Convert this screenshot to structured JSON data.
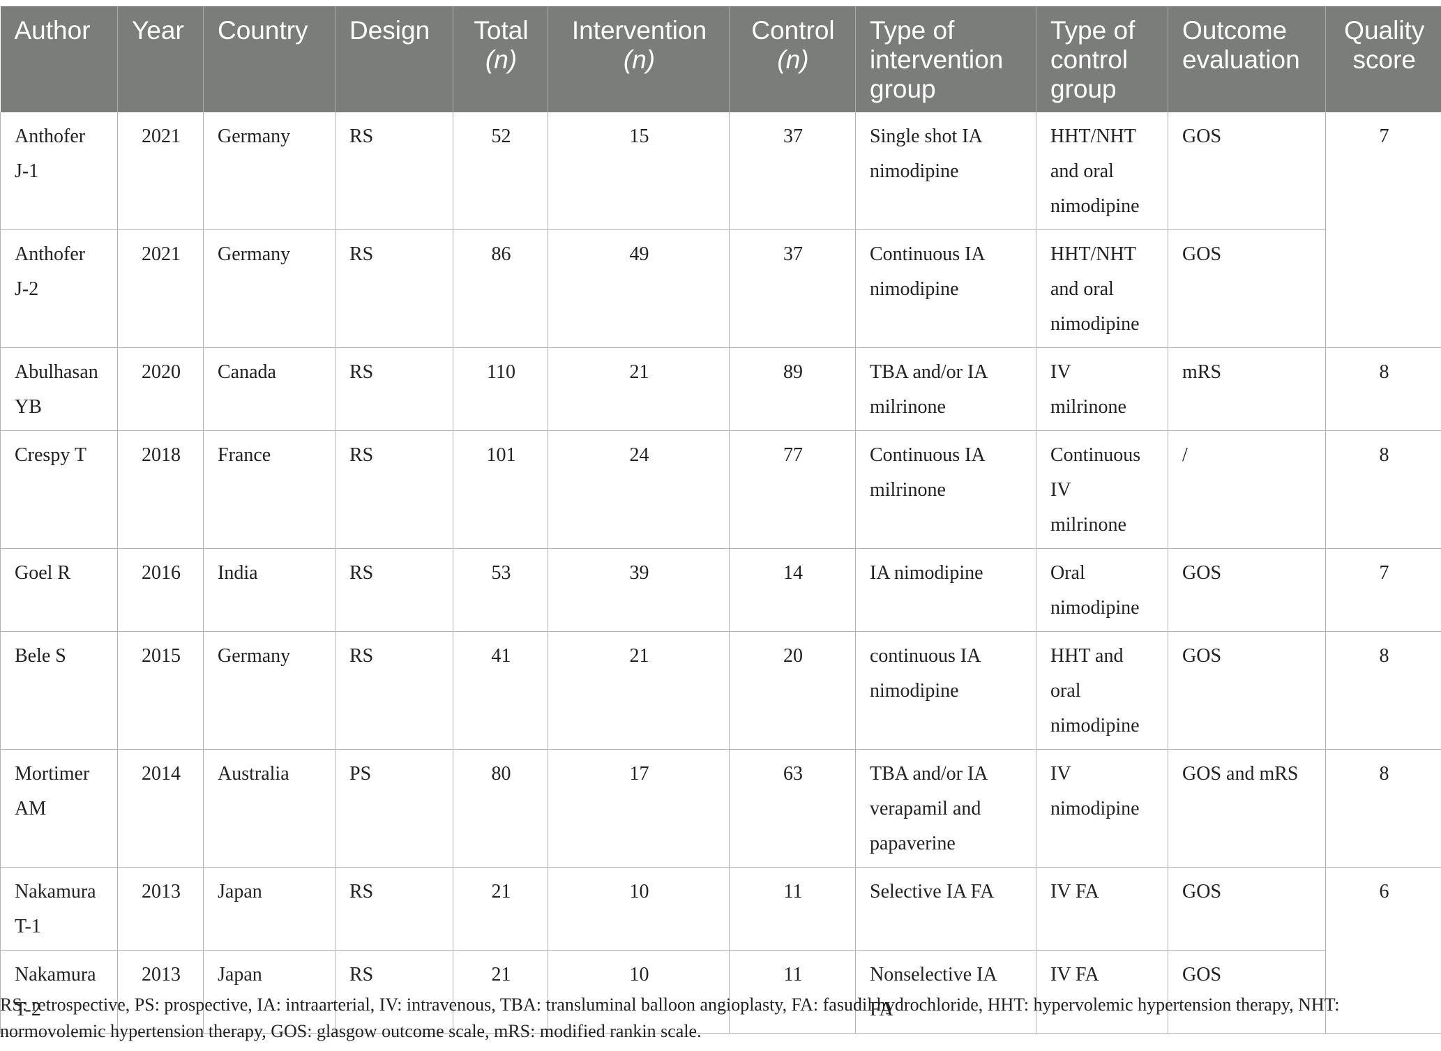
{
  "table": {
    "headers": [
      {
        "line1": "Author",
        "line2": "",
        "line3": ""
      },
      {
        "line1": "Year",
        "line2": "",
        "line3": ""
      },
      {
        "line1": "Country",
        "line2": "",
        "line3": ""
      },
      {
        "line1": "Design",
        "line2": "",
        "line3": ""
      },
      {
        "line1": "Total",
        "italic": "(n)"
      },
      {
        "line1": "Intervention",
        "italic": "(n)"
      },
      {
        "line1": "Control",
        "italic": "(n)"
      },
      {
        "line1": "Type of",
        "line2": "intervention",
        "line3": "group"
      },
      {
        "line1": "Type of",
        "line2": "control",
        "line3": "group"
      },
      {
        "line1": "Outcome",
        "line2": "evaluation",
        "line3": ""
      },
      {
        "line1": "Quality",
        "line2": "score",
        "line3": ""
      }
    ],
    "rows": [
      {
        "author": [
          "Anthofer",
          "J-1"
        ],
        "year": "2021",
        "country": "Germany",
        "design": "RS",
        "total": "52",
        "intervention": "15",
        "control": "37",
        "intervention_type": [
          "Single shot IA",
          "nimodipine"
        ],
        "control_type": [
          "HHT/NHT",
          "and oral",
          "nimodipine"
        ],
        "outcome": "GOS",
        "quality": "7"
      },
      {
        "author": [
          "Anthofer",
          "J-2"
        ],
        "year": "2021",
        "country": "Germany",
        "design": "RS",
        "total": "86",
        "intervention": "49",
        "control": "37",
        "intervention_type": [
          "Continuous IA",
          "nimodipine"
        ],
        "control_type": [
          "HHT/NHT",
          "and oral",
          "nimodipine"
        ],
        "outcome": "GOS",
        "quality": ""
      },
      {
        "author": [
          "Abulhasan",
          "YB"
        ],
        "year": "2020",
        "country": "Canada",
        "design": "RS",
        "total": "110",
        "intervention": "21",
        "control": "89",
        "intervention_type": [
          "TBA and/or IA",
          "milrinone"
        ],
        "control_type": [
          "IV",
          "milrinone"
        ],
        "outcome": "mRS",
        "quality": "8"
      },
      {
        "author": [
          "Crespy T"
        ],
        "year": "2018",
        "country": "France",
        "design": "RS",
        "total": "101",
        "intervention": "24",
        "control": "77",
        "intervention_type": [
          "Continuous IA",
          "milrinone"
        ],
        "control_type": [
          "Continuous",
          "IV",
          "milrinone"
        ],
        "outcome": "/",
        "quality": "8"
      },
      {
        "author": [
          "Goel R"
        ],
        "year": "2016",
        "country": "India",
        "design": "RS",
        "total": "53",
        "intervention": "39",
        "control": "14",
        "intervention_type": [
          "IA nimodipine"
        ],
        "control_type": [
          "Oral",
          "nimodipine"
        ],
        "outcome": "GOS",
        "quality": "7"
      },
      {
        "author": [
          "Bele S"
        ],
        "year": "2015",
        "country": "Germany",
        "design": "RS",
        "total": "41",
        "intervention": "21",
        "control": "20",
        "intervention_type": [
          "continuous IA",
          "nimodipine"
        ],
        "control_type": [
          "HHT and",
          "oral",
          "nimodipine"
        ],
        "outcome": "GOS",
        "quality": "8"
      },
      {
        "author": [
          "Mortimer",
          "AM"
        ],
        "year": "2014",
        "country": "Australia",
        "design": "PS",
        "total": "80",
        "intervention": "17",
        "control": "63",
        "intervention_type": [
          "TBA and/or IA",
          "verapamil and",
          "papaverine"
        ],
        "control_type": [
          "IV",
          "nimodipine"
        ],
        "outcome": "GOS and mRS",
        "quality": "8"
      },
      {
        "author": [
          "Nakamura",
          "T-1"
        ],
        "year": "2013",
        "country": "Japan",
        "design": "RS",
        "total": "21",
        "intervention": "10",
        "control": "11",
        "intervention_type": [
          "Selective IA FA"
        ],
        "control_type": [
          "IV FA"
        ],
        "outcome": "GOS",
        "quality": "6"
      },
      {
        "author": [
          "Nakamura",
          "T-2"
        ],
        "year": "2013",
        "country": "Japan",
        "design": "RS",
        "total": "21",
        "intervention": "10",
        "control": "11",
        "intervention_type": [
          "Nonselective IA",
          "FA"
        ],
        "control_type": [
          "IV FA"
        ],
        "outcome": "GOS",
        "quality": ""
      }
    ]
  },
  "footnote": {
    "line1": "RS: retrospective, PS: prospective, IA: intraarterial, IV: intravenous, TBA: transluminal balloon angioplasty, FA: fasudil hydrochloride, HHT: hypervolemic hypertension therapy, NHT:",
    "line2": "normovolemic hypertension therapy, GOS: glasgow outcome scale, mRS: modified rankin scale."
  }
}
